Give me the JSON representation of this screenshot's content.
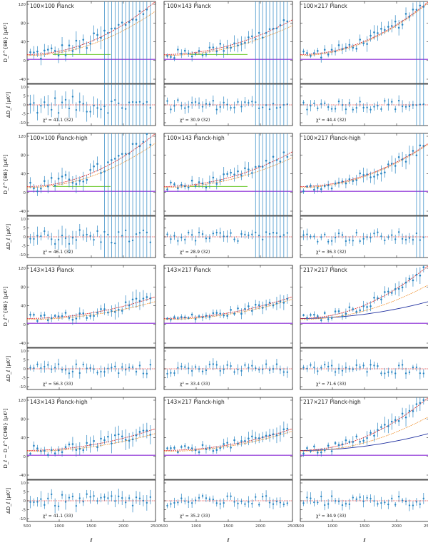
{
  "figure": {
    "ylabels": [
      "D_ℓ^{BB} [μK²]",
      "D_ℓ^{BB} [μK²]",
      "D_ℓ^{BB} [μK²]",
      "D_ℓ − D_ℓ^{CMB} [μK²]"
    ],
    "resid_ylabel": "ΔD_ℓ [μK²]",
    "xlabel": "ℓ",
    "xticks": [
      "500",
      "1000",
      "1500",
      "2000",
      "2500"
    ]
  },
  "chart_data": [
    {
      "type": "scatter",
      "title": "100×100 Planck",
      "chi2": "χ² = 41.1 (32)",
      "xlim": [
        500,
        2500
      ],
      "ylim": [
        -50,
        120
      ],
      "yticks": [
        "120",
        "80",
        "40",
        "0",
        "-40"
      ],
      "resid_ylim": [
        -10,
        10
      ],
      "resid_yticks": [
        "10",
        "5",
        "0",
        "-5",
        "-10"
      ],
      "model_red_end": 120,
      "model_orange_end": 100,
      "blue_end": 0,
      "purple_level": 0,
      "green_level": 10,
      "spread": 30,
      "resid_spread": 5,
      "big_err_from": 1700
    },
    {
      "type": "scatter",
      "title": "100×143 Planck",
      "chi2": "χ² = 30.9 (32)",
      "xlim": [
        500,
        2500
      ],
      "ylim": [
        -50,
        120
      ],
      "yticks": [
        "120",
        "80",
        "40",
        "0",
        "-40"
      ],
      "resid_ylim": [
        -10,
        10
      ],
      "resid_yticks": [
        "10",
        "5",
        "0",
        "-5",
        "-10"
      ],
      "model_red_end": 82,
      "model_orange_end": 70,
      "blue_end": 0,
      "purple_level": 0,
      "green_level": 10,
      "spread": 20,
      "resid_spread": 3,
      "big_err_from": 1900
    },
    {
      "type": "scatter",
      "title": "100×217 Planck",
      "chi2": "χ² = 44.4 (32)",
      "xlim": [
        500,
        2500
      ],
      "ylim": [
        -50,
        120
      ],
      "yticks": [
        "120",
        "80",
        "40",
        "0",
        "-40"
      ],
      "resid_ylim": [
        -10,
        10
      ],
      "resid_yticks": [
        "10",
        "5",
        "0",
        "-5",
        "-10"
      ],
      "model_red_end": 120,
      "model_orange_end": 118,
      "blue_end": 0,
      "purple_level": 0,
      "green_level": 0,
      "spread": 20,
      "resid_spread": 3,
      "big_err_from": 2300
    },
    {
      "type": "scatter",
      "title": "100×100 Planck-high",
      "chi2": "χ² = 46.1 (32)",
      "xlim": [
        500,
        2500
      ],
      "ylim": [
        -50,
        120
      ],
      "yticks": [
        "120",
        "80",
        "40",
        "0",
        "-40"
      ],
      "resid_ylim": [
        -10,
        10
      ],
      "resid_yticks": [
        "10",
        "5",
        "0",
        "-5",
        "-10"
      ],
      "model_red_end": 120,
      "model_orange_end": 100,
      "blue_end": 0,
      "purple_level": 0,
      "green_level": 10,
      "spread": 30,
      "resid_spread": 5,
      "big_err_from": 1700
    },
    {
      "type": "scatter",
      "title": "100×143 Planck-high",
      "chi2": "χ² = 28.9 (32)",
      "xlim": [
        500,
        2500
      ],
      "ylim": [
        -50,
        120
      ],
      "yticks": [
        "120",
        "80",
        "40",
        "0",
        "-40"
      ],
      "resid_ylim": [
        -10,
        10
      ],
      "resid_yticks": [
        "10",
        "5",
        "0",
        "-5",
        "-10"
      ],
      "model_red_end": 82,
      "model_orange_end": 70,
      "blue_end": 0,
      "purple_level": 0,
      "green_level": 10,
      "spread": 20,
      "resid_spread": 3,
      "big_err_from": 1900
    },
    {
      "type": "scatter",
      "title": "100×217 Planck-high",
      "chi2": "χ² = 36.3 (32)",
      "xlim": [
        500,
        2500
      ],
      "ylim": [
        -50,
        120
      ],
      "yticks": [
        "120",
        "80",
        "40",
        "0",
        "-40"
      ],
      "resid_ylim": [
        -10,
        10
      ],
      "resid_yticks": [
        "10",
        "5",
        "0",
        "-5",
        "-10"
      ],
      "model_red_end": 100,
      "model_orange_end": 98,
      "blue_end": 0,
      "purple_level": 0,
      "green_level": 0,
      "spread": 20,
      "resid_spread": 3,
      "big_err_from": 2300
    },
    {
      "type": "scatter",
      "title": "143×143 Planck",
      "chi2": "χ² = 56.3 (33)",
      "xlim": [
        500,
        2500
      ],
      "ylim": [
        -50,
        120
      ],
      "yticks": [
        "120",
        "80",
        "40",
        "0",
        "-40"
      ],
      "resid_ylim": [
        -10,
        10
      ],
      "resid_yticks": [
        "10",
        "5",
        "0",
        "-5",
        "-10"
      ],
      "model_red_end": 55,
      "model_orange_end": 45,
      "blue_end": 0,
      "purple_level": 0,
      "green_level": 0,
      "spread": 18,
      "resid_spread": 3,
      "big_err_from": 2500
    },
    {
      "type": "scatter",
      "title": "143×217 Planck",
      "chi2": "χ² = 33.4 (33)",
      "xlim": [
        500,
        2500
      ],
      "ylim": [
        -50,
        120
      ],
      "yticks": [
        "120",
        "80",
        "40",
        "0",
        "-40"
      ],
      "resid_ylim": [
        -10,
        10
      ],
      "resid_yticks": [
        "10",
        "5",
        "0",
        "-5",
        "-10"
      ],
      "model_red_end": 55,
      "model_orange_end": 50,
      "blue_end": 0,
      "purple_level": 0,
      "green_level": 0,
      "spread": 14,
      "resid_spread": 3,
      "big_err_from": 2500
    },
    {
      "type": "scatter",
      "title": "217×217 Planck",
      "chi2": "χ² = 71.6 (33)",
      "xlim": [
        500,
        2500
      ],
      "ylim": [
        -50,
        120
      ],
      "yticks": [
        "120",
        "80",
        "40",
        "0",
        "-40"
      ],
      "resid_ylim": [
        -10,
        10
      ],
      "resid_yticks": [
        "10",
        "5",
        "0",
        "-5",
        "-10"
      ],
      "model_red_end": 120,
      "model_orange_end": 80,
      "blue_end": 45,
      "purple_level": 0,
      "green_level": 0,
      "spread": 16,
      "resid_spread": 3,
      "big_err_from": 2500
    },
    {
      "type": "scatter",
      "title": "143×143 Planck-high",
      "chi2": "χ² = 41.1 (33)",
      "xlim": [
        500,
        2500
      ],
      "ylim": [
        -50,
        120
      ],
      "yticks": [
        "120",
        "80",
        "40",
        "0",
        "-40"
      ],
      "resid_ylim": [
        -10,
        10
      ],
      "resid_yticks": [
        "10",
        "5",
        "0",
        "-5",
        "-10"
      ],
      "model_red_end": 55,
      "model_orange_end": 45,
      "blue_end": 0,
      "purple_level": 0,
      "green_level": 0,
      "spread": 22,
      "resid_spread": 4,
      "big_err_from": 2500
    },
    {
      "type": "scatter",
      "title": "143×217 Planck-high",
      "chi2": "χ² = 35.2 (33)",
      "xlim": [
        500,
        2500
      ],
      "ylim": [
        -50,
        120
      ],
      "yticks": [
        "120",
        "80",
        "40",
        "0",
        "-40"
      ],
      "resid_ylim": [
        -10,
        10
      ],
      "resid_yticks": [
        "10",
        "5",
        "0",
        "-5",
        "-10"
      ],
      "model_red_end": 55,
      "model_orange_end": 50,
      "blue_end": 0,
      "purple_level": 0,
      "green_level": 0,
      "spread": 16,
      "resid_spread": 3,
      "big_err_from": 2500
    },
    {
      "type": "scatter",
      "title": "217×217 Planck-high",
      "chi2": "χ² = 34.9 (33)",
      "xlim": [
        500,
        2500
      ],
      "ylim": [
        -50,
        120
      ],
      "yticks": [
        "120",
        "80",
        "40",
        "0",
        "-40"
      ],
      "resid_ylim": [
        -10,
        10
      ],
      "resid_yticks": [
        "10",
        "5",
        "0",
        "-5",
        "-10"
      ],
      "model_red_end": 120,
      "model_orange_end": 80,
      "blue_end": 45,
      "purple_level": 0,
      "green_level": 0,
      "spread": 18,
      "resid_spread": 3,
      "big_err_from": 2500
    }
  ]
}
